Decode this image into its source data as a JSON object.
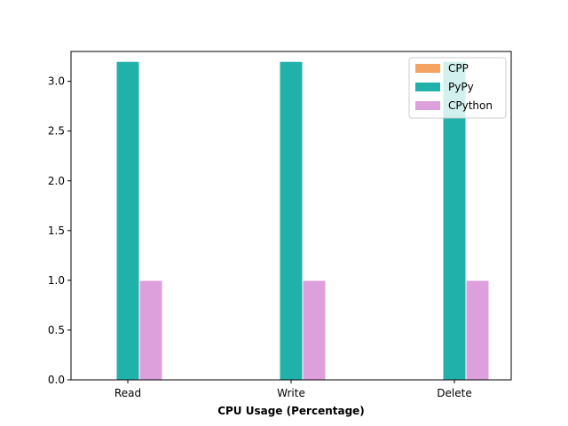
{
  "chart_data": {
    "type": "bar",
    "title": "",
    "xlabel": "CPU Usage (Percentage)",
    "ylabel": "",
    "categories": [
      "Read",
      "Write",
      "Delete"
    ],
    "series": [
      {
        "name": "CPP",
        "values": [
          0,
          0,
          0
        ],
        "color": "#f4a460"
      },
      {
        "name": "PyPy",
        "values": [
          3.2,
          3.2,
          3.2
        ],
        "color": "#20b2aa"
      },
      {
        "name": "CPython",
        "values": [
          1.0,
          1.0,
          1.0
        ],
        "color": "#dda0dd"
      }
    ],
    "ylim": [
      0,
      3.3
    ],
    "yticks": [
      0.0,
      0.5,
      1.0,
      1.5,
      2.0,
      2.5,
      3.0
    ],
    "grid": false,
    "legend": "top-right"
  }
}
